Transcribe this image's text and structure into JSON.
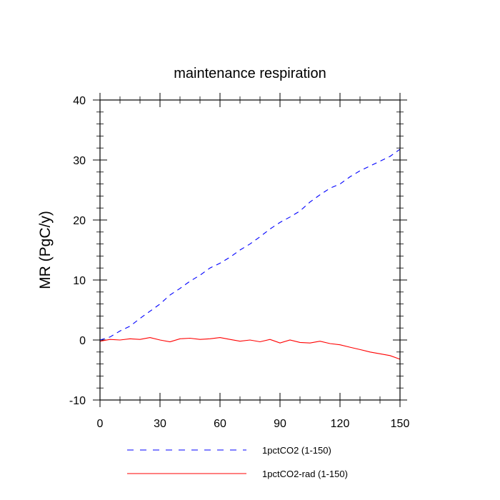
{
  "chart_data": {
    "type": "line",
    "title": "maintenance respiration",
    "ylabel": "MR  (PgC/y)",
    "xlabel": "",
    "xlim": [
      0,
      150
    ],
    "ylim": [
      -10,
      40
    ],
    "xticks": [
      0,
      30,
      60,
      90,
      120,
      150
    ],
    "xtick_labels": [
      "0",
      "30",
      "60",
      "90",
      "120",
      "150"
    ],
    "yticks": [
      -10,
      0,
      10,
      20,
      30,
      40
    ],
    "ytick_labels": [
      "-10",
      "0",
      "10",
      "20",
      "30",
      "40"
    ],
    "grid": false,
    "legend_position": "bottom",
    "series": [
      {
        "name": "1pctCO2 (1-150)",
        "color": "#0000ff",
        "dash": "dashed",
        "x": [
          0,
          5,
          10,
          15,
          20,
          25,
          30,
          35,
          40,
          45,
          50,
          55,
          60,
          65,
          70,
          75,
          80,
          85,
          90,
          95,
          100,
          105,
          110,
          115,
          120,
          125,
          130,
          135,
          140,
          145,
          150
        ],
        "y": [
          0.0,
          0.5,
          1.5,
          2.3,
          3.6,
          4.8,
          6.0,
          7.5,
          8.6,
          9.8,
          10.8,
          12.0,
          12.8,
          13.8,
          15.0,
          16.0,
          17.2,
          18.5,
          19.6,
          20.5,
          21.5,
          23.0,
          24.2,
          25.3,
          26.0,
          27.2,
          28.2,
          29.0,
          29.8,
          30.6,
          31.8
        ]
      },
      {
        "name": "1pctCO2-rad (1-150)",
        "color": "#ff0000",
        "dash": "solid",
        "x": [
          0,
          5,
          10,
          15,
          20,
          25,
          30,
          35,
          40,
          45,
          50,
          55,
          60,
          65,
          70,
          75,
          80,
          85,
          90,
          95,
          100,
          105,
          110,
          115,
          120,
          125,
          130,
          135,
          140,
          145,
          150
        ],
        "y": [
          -0.2,
          0.1,
          0.0,
          0.2,
          0.1,
          0.4,
          0.0,
          -0.3,
          0.2,
          0.3,
          0.1,
          0.2,
          0.4,
          0.1,
          -0.2,
          0.0,
          -0.3,
          0.1,
          -0.5,
          0.0,
          -0.4,
          -0.5,
          -0.2,
          -0.6,
          -0.8,
          -1.2,
          -1.6,
          -2.0,
          -2.3,
          -2.6,
          -3.2
        ]
      }
    ]
  }
}
